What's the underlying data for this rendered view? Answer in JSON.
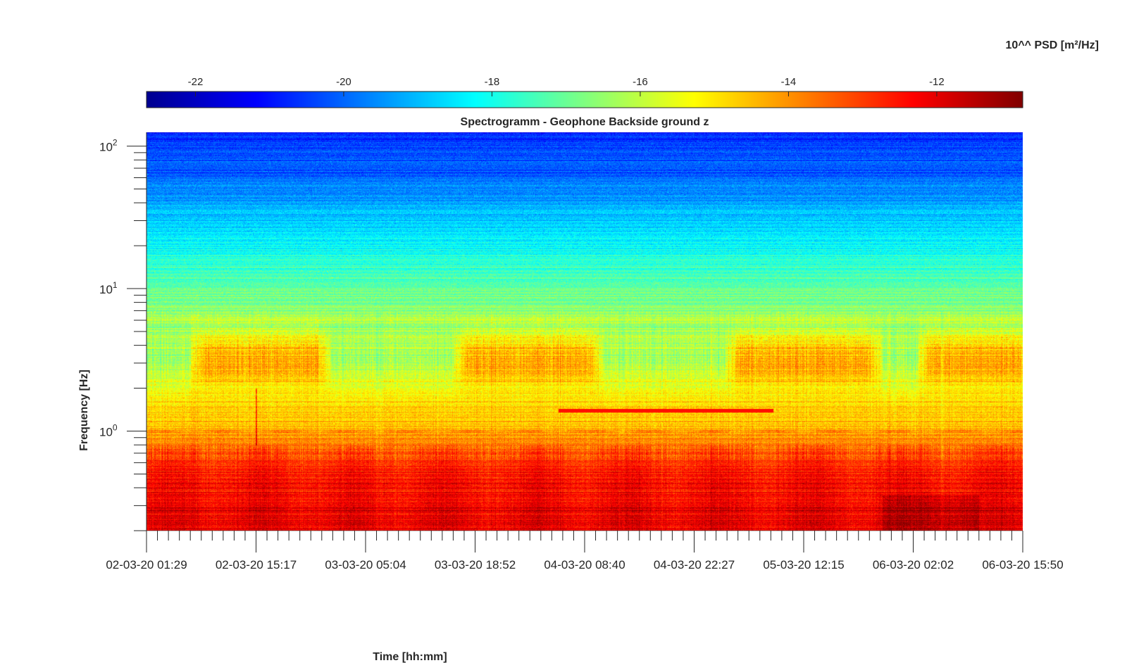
{
  "chart_data": {
    "type": "heatmap",
    "title": "Spectrogramm - Geophone Backside ground z",
    "xlabel": "Time [hh:mm]",
    "ylabel": "Frequency [Hz]",
    "x_tick_labels": [
      "02-03-20 01:29",
      "02-03-20 15:17",
      "03-03-20 05:04",
      "03-03-20 18:52",
      "04-03-20 08:40",
      "04-03-20 22:27",
      "05-03-20 12:15",
      "06-03-20 02:02",
      "06-03-20 15:50"
    ],
    "y_scale": "log",
    "y_tick_values": [
      1,
      10,
      100
    ],
    "y_tick_labels": [
      {
        "base": "10",
        "exp": "0"
      },
      {
        "base": "10",
        "exp": "1"
      },
      {
        "base": "10",
        "exp": "2"
      }
    ],
    "ylim": [
      0.2,
      125
    ],
    "colorbar": {
      "label": "10^^ PSD [m²/Hz]",
      "position": "top",
      "range": [
        -22.66,
        -10.84
      ],
      "ticks": [
        -22,
        -20,
        -18,
        -16,
        -14,
        -12
      ],
      "tick_labels": [
        "-22",
        "-20",
        "-18",
        "-16",
        "-14",
        "-12"
      ],
      "colormap": "jet"
    },
    "grid": false,
    "features": [
      {
        "name": "tonal-line",
        "freq_hz": 1.4,
        "x_start_fraction": 0.47,
        "x_end_fraction": 0.715
      },
      {
        "name": "microseism-band",
        "freq_hz": 1.0
      },
      {
        "name": "impulse",
        "x_fraction": 0.125
      }
    ]
  }
}
